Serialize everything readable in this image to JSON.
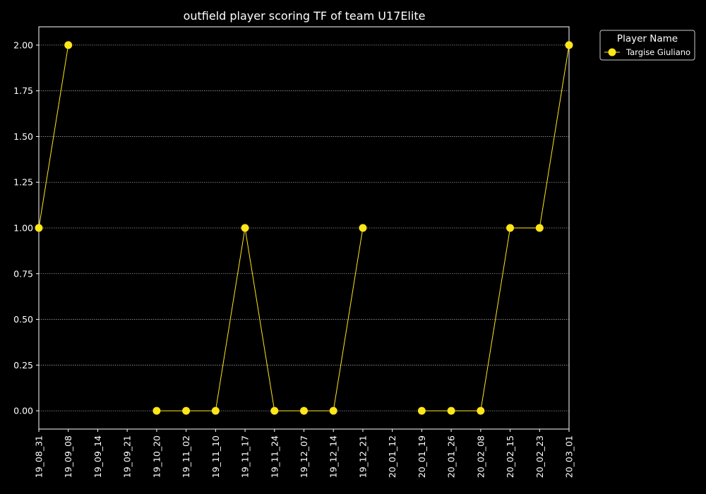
{
  "chart_data": {
    "type": "line",
    "title": "outfield player scoring TF of team U17Elite",
    "xlabel": "",
    "ylabel": "",
    "categories": [
      "19_08_31",
      "19_09_08",
      "19_09_14",
      "19_09_21",
      "19_10_20",
      "19_11_02",
      "19_11_10",
      "19_11_17",
      "19_11_24",
      "19_12_07",
      "19_12_14",
      "19_12_21",
      "20_01_12",
      "20_01_19",
      "20_01_26",
      "20_02_08",
      "20_02_15",
      "20_02_23",
      "20_03_01"
    ],
    "ylim": [
      -0.1,
      2.1
    ],
    "yticks": [
      "0.00",
      "0.25",
      "0.50",
      "0.75",
      "1.00",
      "1.25",
      "1.50",
      "1.75",
      "2.00"
    ],
    "grid": "horizontal dotted",
    "legend": {
      "title": "Player Name",
      "placement": "upper-right-outside"
    },
    "series": [
      {
        "name": "Targise Giuliano",
        "color": "#ffe619",
        "values": [
          1,
          2,
          null,
          null,
          0,
          0,
          0,
          1,
          0,
          0,
          0,
          1,
          null,
          0,
          0,
          0,
          1,
          1,
          2
        ]
      }
    ]
  }
}
